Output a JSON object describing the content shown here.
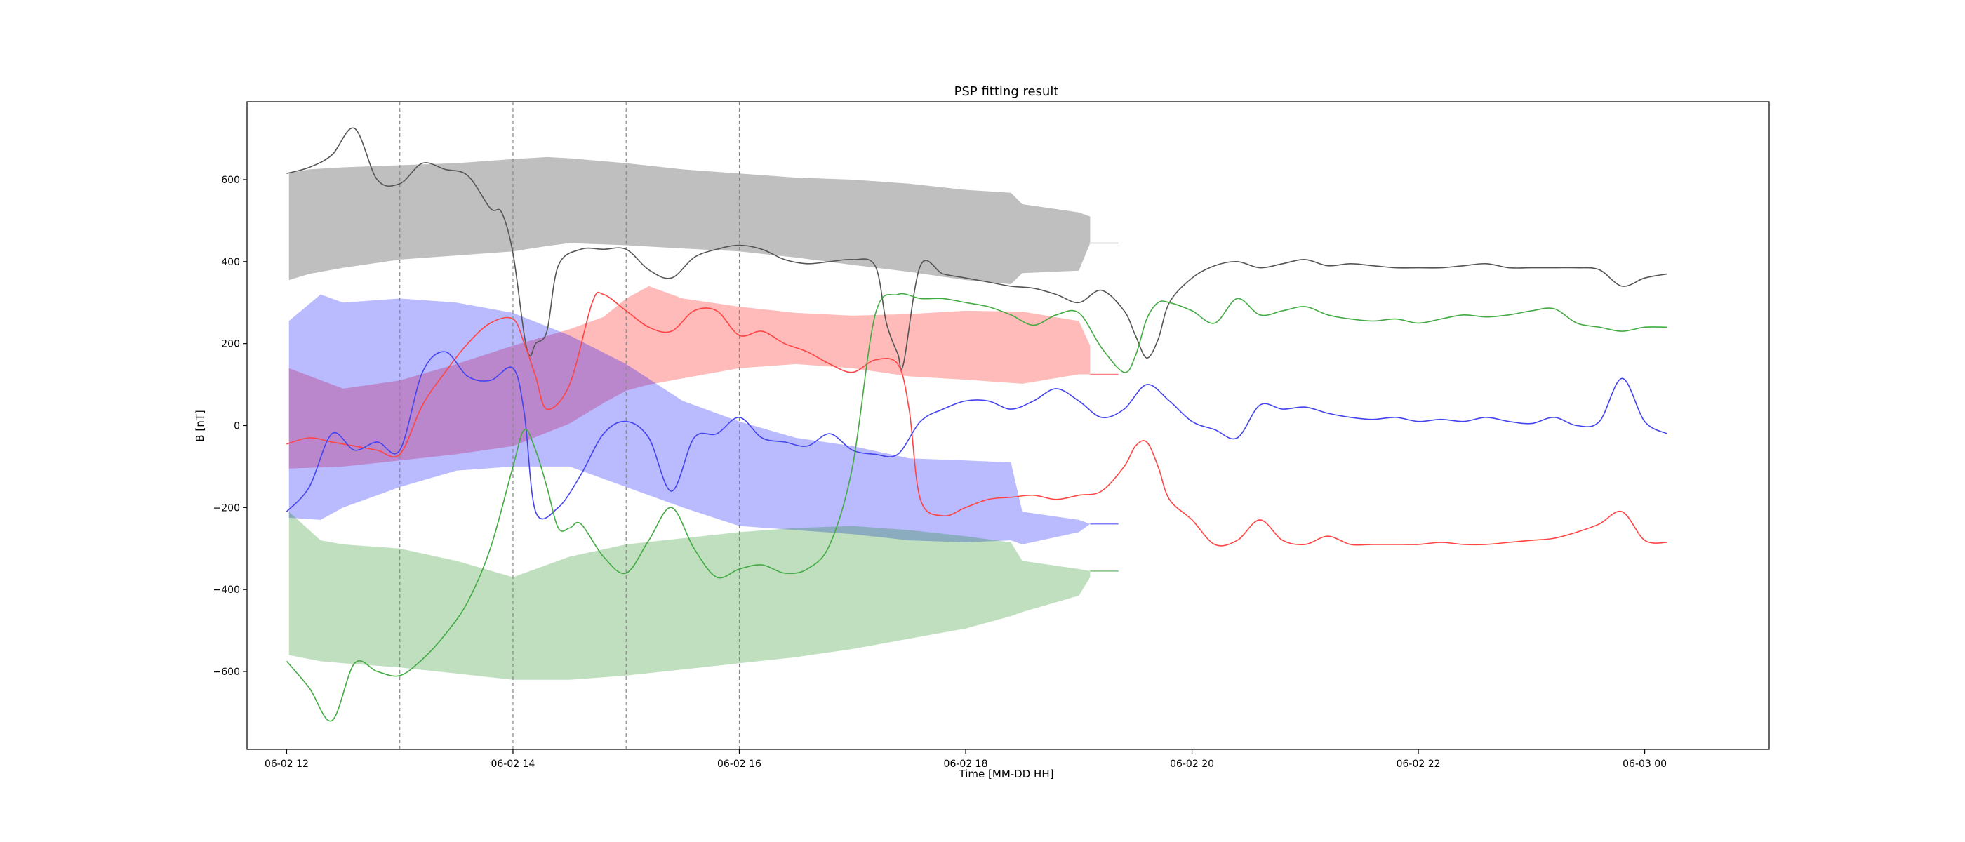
{
  "chart_data": {
    "type": "line",
    "title": "PSP fitting result",
    "xlabel": "Time [MM-DD HH]",
    "ylabel": "B [nT]",
    "xlim": [
      11.65,
      25.1
    ],
    "ylim": [
      -790,
      790
    ],
    "x_ticks": [
      {
        "value": 12,
        "label": "06-02 12"
      },
      {
        "value": 14,
        "label": "06-02 14"
      },
      {
        "value": 16,
        "label": "06-02 16"
      },
      {
        "value": 18,
        "label": "06-02 18"
      },
      {
        "value": 20,
        "label": "06-02 20"
      },
      {
        "value": 22,
        "label": "06-02 22"
      },
      {
        "value": 24,
        "label": "06-03 00"
      }
    ],
    "y_ticks": [
      {
        "value": 600,
        "label": "600"
      },
      {
        "value": 400,
        "label": "400"
      },
      {
        "value": 200,
        "label": "200"
      },
      {
        "value": 0,
        "label": "0"
      },
      {
        "value": -200,
        "label": "−200"
      },
      {
        "value": -400,
        "label": "−400"
      },
      {
        "value": -600,
        "label": "−600"
      }
    ],
    "vlines": [
      13,
      14,
      15,
      16
    ],
    "legend": "none",
    "grid": false,
    "bands": [
      {
        "color": "#808080",
        "opacity": 0.5,
        "x": [
          12.02,
          12.2,
          12.5,
          13.0,
          13.5,
          14.0,
          14.3,
          14.5,
          15.0,
          15.5,
          16.0,
          16.5,
          17.0,
          17.5,
          18.0,
          18.4,
          18.5,
          19.0,
          19.1
        ],
        "upper": [
          615,
          625,
          630,
          635,
          640,
          650,
          655,
          652,
          640,
          625,
          615,
          605,
          600,
          590,
          575,
          568,
          540,
          520,
          510
        ],
        "lower": [
          355,
          370,
          385,
          405,
          415,
          425,
          438,
          445,
          440,
          432,
          425,
          410,
          392,
          375,
          355,
          345,
          372,
          378,
          445
        ]
      },
      {
        "color": "#ff0000",
        "opacity": 0.27,
        "x": [
          12.02,
          12.5,
          13.0,
          13.5,
          14.0,
          14.5,
          14.8,
          15.0,
          15.2,
          15.5,
          16.0,
          16.5,
          17.0,
          17.5,
          18.0,
          18.5,
          19.0,
          19.1
        ],
        "upper": [
          140,
          90,
          110,
          150,
          195,
          235,
          265,
          310,
          340,
          310,
          290,
          275,
          268,
          272,
          280,
          278,
          255,
          195
        ],
        "lower": [
          -105,
          -100,
          -85,
          -70,
          -50,
          5,
          55,
          85,
          100,
          115,
          140,
          150,
          140,
          120,
          112,
          102,
          125,
          125
        ]
      },
      {
        "color": "#0000ff",
        "opacity": 0.27,
        "x": [
          12.02,
          12.3,
          12.5,
          13.0,
          13.5,
          14.0,
          14.5,
          15.0,
          15.5,
          16.0,
          16.5,
          17.0,
          17.5,
          18.0,
          18.4,
          18.5,
          19.0,
          19.1
        ],
        "upper": [
          255,
          320,
          300,
          310,
          300,
          275,
          220,
          150,
          60,
          10,
          -30,
          -50,
          -80,
          -85,
          -90,
          -210,
          -230,
          -240
        ],
        "lower": [
          -225,
          -230,
          -200,
          -150,
          -110,
          -100,
          -100,
          -150,
          -200,
          -245,
          -255,
          -265,
          -280,
          -285,
          -280,
          -290,
          -260,
          -240
        ]
      },
      {
        "color": "#008000",
        "opacity": 0.25,
        "x": [
          12.02,
          12.3,
          12.5,
          13.0,
          13.5,
          14.0,
          14.5,
          15.0,
          15.5,
          16.0,
          16.5,
          17.0,
          17.5,
          18.0,
          18.4,
          18.5,
          19.0,
          19.1
        ],
        "upper": [
          -210,
          -280,
          -290,
          -300,
          -330,
          -370,
          -320,
          -290,
          -275,
          -260,
          -250,
          -245,
          -255,
          -270,
          -285,
          -330,
          -350,
          -355
        ],
        "lower": [
          -560,
          -575,
          -580,
          -590,
          -605,
          -620,
          -620,
          -610,
          -595,
          -580,
          -565,
          -545,
          -520,
          -495,
          -465,
          -455,
          -415,
          -370
        ]
      }
    ],
    "band_tails": [
      {
        "color": "#808080",
        "x": [
          19.1,
          19.35
        ],
        "y": [
          445,
          445
        ]
      },
      {
        "color": "#ff0000",
        "x": [
          19.1,
          19.35
        ],
        "y": [
          125,
          125
        ]
      },
      {
        "color": "#0000ff",
        "x": [
          19.1,
          19.35
        ],
        "y": [
          -240,
          -240
        ]
      },
      {
        "color": "#008000",
        "x": [
          19.1,
          19.35
        ],
        "y": [
          -355,
          -355
        ]
      }
    ],
    "series": [
      {
        "color": "#555555",
        "x": [
          12.0,
          12.2,
          12.4,
          12.6,
          12.8,
          13.0,
          13.2,
          13.4,
          13.6,
          13.8,
          13.9,
          14.0,
          14.1,
          14.15,
          14.2,
          14.3,
          14.4,
          14.6,
          14.8,
          15.0,
          15.2,
          15.4,
          15.6,
          15.8,
          16.0,
          16.2,
          16.4,
          16.6,
          16.8,
          17.0,
          17.2,
          17.3,
          17.4,
          17.45,
          17.6,
          17.8,
          18.0,
          18.2,
          18.4,
          18.6,
          18.8,
          19.0,
          19.2,
          19.4,
          19.5,
          19.6,
          19.7,
          19.8,
          20.0,
          20.2,
          20.4,
          20.6,
          20.8,
          21.0,
          21.2,
          21.4,
          21.6,
          21.8,
          22.0,
          22.2,
          22.4,
          22.6,
          22.8,
          23.0,
          23.2,
          23.4,
          23.6,
          23.8,
          24.0,
          24.2
        ],
        "y": [
          615,
          630,
          660,
          725,
          600,
          590,
          640,
          625,
          610,
          530,
          520,
          420,
          220,
          170,
          200,
          230,
          390,
          430,
          430,
          430,
          380,
          360,
          410,
          430,
          440,
          430,
          405,
          395,
          400,
          405,
          390,
          250,
          175,
          150,
          390,
          370,
          360,
          350,
          340,
          335,
          320,
          300,
          330,
          280,
          220,
          165,
          210,
          300,
          360,
          390,
          400,
          385,
          395,
          405,
          390,
          395,
          390,
          385,
          385,
          385,
          390,
          395,
          385,
          385,
          385,
          385,
          380,
          340,
          360,
          370
        ]
      },
      {
        "color": "#ff4444",
        "x": [
          12.0,
          12.2,
          12.4,
          12.6,
          12.8,
          13.0,
          13.2,
          13.4,
          13.6,
          13.8,
          14.0,
          14.1,
          14.2,
          14.3,
          14.5,
          14.7,
          14.8,
          15.0,
          15.2,
          15.4,
          15.6,
          15.8,
          16.0,
          16.2,
          16.4,
          16.6,
          16.8,
          17.0,
          17.2,
          17.4,
          17.5,
          17.6,
          17.8,
          18.0,
          18.2,
          18.4,
          18.6,
          18.8,
          19.0,
          19.2,
          19.4,
          19.5,
          19.6,
          19.7,
          19.8,
          20.0,
          20.2,
          20.4,
          20.6,
          20.8,
          21.0,
          21.2,
          21.4,
          21.6,
          21.8,
          22.0,
          22.2,
          22.4,
          22.6,
          22.8,
          23.0,
          23.2,
          23.4,
          23.6,
          23.8,
          24.0,
          24.2
        ],
        "y": [
          -45,
          -30,
          -40,
          -50,
          -60,
          -70,
          50,
          130,
          200,
          250,
          260,
          200,
          120,
          40,
          100,
          300,
          320,
          280,
          240,
          230,
          280,
          280,
          220,
          230,
          200,
          180,
          150,
          130,
          160,
          150,
          40,
          -180,
          -220,
          -200,
          -180,
          -175,
          -170,
          -180,
          -170,
          -160,
          -100,
          -50,
          -40,
          -100,
          -180,
          -230,
          -290,
          -280,
          -230,
          -280,
          -290,
          -270,
          -290,
          -290,
          -290,
          -290,
          -285,
          -290,
          -290,
          -285,
          -280,
          -275,
          -260,
          -240,
          -210,
          -280,
          -285
        ]
      },
      {
        "color": "#4444ee",
        "x": [
          12.0,
          12.2,
          12.4,
          12.6,
          12.8,
          13.0,
          13.2,
          13.4,
          13.6,
          13.8,
          14.0,
          14.1,
          14.2,
          14.4,
          14.6,
          14.8,
          15.0,
          15.2,
          15.4,
          15.6,
          15.8,
          16.0,
          16.2,
          16.4,
          16.6,
          16.8,
          17.0,
          17.2,
          17.4,
          17.6,
          17.8,
          18.0,
          18.2,
          18.4,
          18.6,
          18.8,
          19.0,
          19.2,
          19.4,
          19.6,
          19.8,
          20.0,
          20.2,
          20.4,
          20.6,
          20.8,
          21.0,
          21.2,
          21.4,
          21.6,
          21.8,
          22.0,
          22.2,
          22.4,
          22.6,
          22.8,
          23.0,
          23.2,
          23.4,
          23.6,
          23.8,
          24.0,
          24.2
        ],
        "y": [
          -210,
          -150,
          -20,
          -60,
          -40,
          -60,
          130,
          180,
          120,
          110,
          140,
          30,
          -210,
          -200,
          -120,
          -20,
          10,
          -30,
          -160,
          -30,
          -20,
          20,
          -30,
          -40,
          -50,
          -20,
          -60,
          -70,
          -70,
          10,
          40,
          60,
          60,
          40,
          60,
          90,
          60,
          20,
          40,
          100,
          60,
          10,
          -10,
          -30,
          50,
          40,
          45,
          30,
          20,
          15,
          20,
          10,
          15,
          10,
          20,
          10,
          5,
          20,
          0,
          10,
          115,
          10,
          -20
        ]
      },
      {
        "color": "#44aa44",
        "x": [
          12.0,
          12.2,
          12.4,
          12.6,
          12.8,
          13.0,
          13.2,
          13.4,
          13.6,
          13.8,
          14.0,
          14.1,
          14.2,
          14.3,
          14.4,
          14.5,
          14.6,
          14.8,
          15.0,
          15.2,
          15.4,
          15.6,
          15.8,
          16.0,
          16.2,
          16.4,
          16.6,
          16.8,
          17.0,
          17.2,
          17.4,
          17.6,
          17.8,
          18.0,
          18.2,
          18.4,
          18.6,
          18.8,
          19.0,
          19.2,
          19.4,
          19.5,
          19.6,
          19.7,
          19.8,
          20.0,
          20.2,
          20.4,
          20.6,
          20.8,
          21.0,
          21.2,
          21.4,
          21.6,
          21.8,
          22.0,
          22.2,
          22.4,
          22.6,
          22.8,
          23.0,
          23.2,
          23.4,
          23.6,
          23.8,
          24.0,
          24.2
        ],
        "y": [
          -575,
          -640,
          -720,
          -580,
          -600,
          -610,
          -570,
          -510,
          -430,
          -300,
          -100,
          -10,
          -60,
          -150,
          -250,
          -250,
          -240,
          -320,
          -360,
          -280,
          -200,
          -300,
          -370,
          -350,
          -340,
          -360,
          -350,
          -290,
          -100,
          270,
          320,
          310,
          310,
          300,
          290,
          270,
          245,
          270,
          275,
          190,
          130,
          170,
          260,
          300,
          300,
          280,
          250,
          310,
          270,
          280,
          290,
          270,
          260,
          255,
          260,
          250,
          260,
          270,
          265,
          270,
          280,
          285,
          250,
          240,
          230,
          240,
          240
        ]
      }
    ]
  }
}
